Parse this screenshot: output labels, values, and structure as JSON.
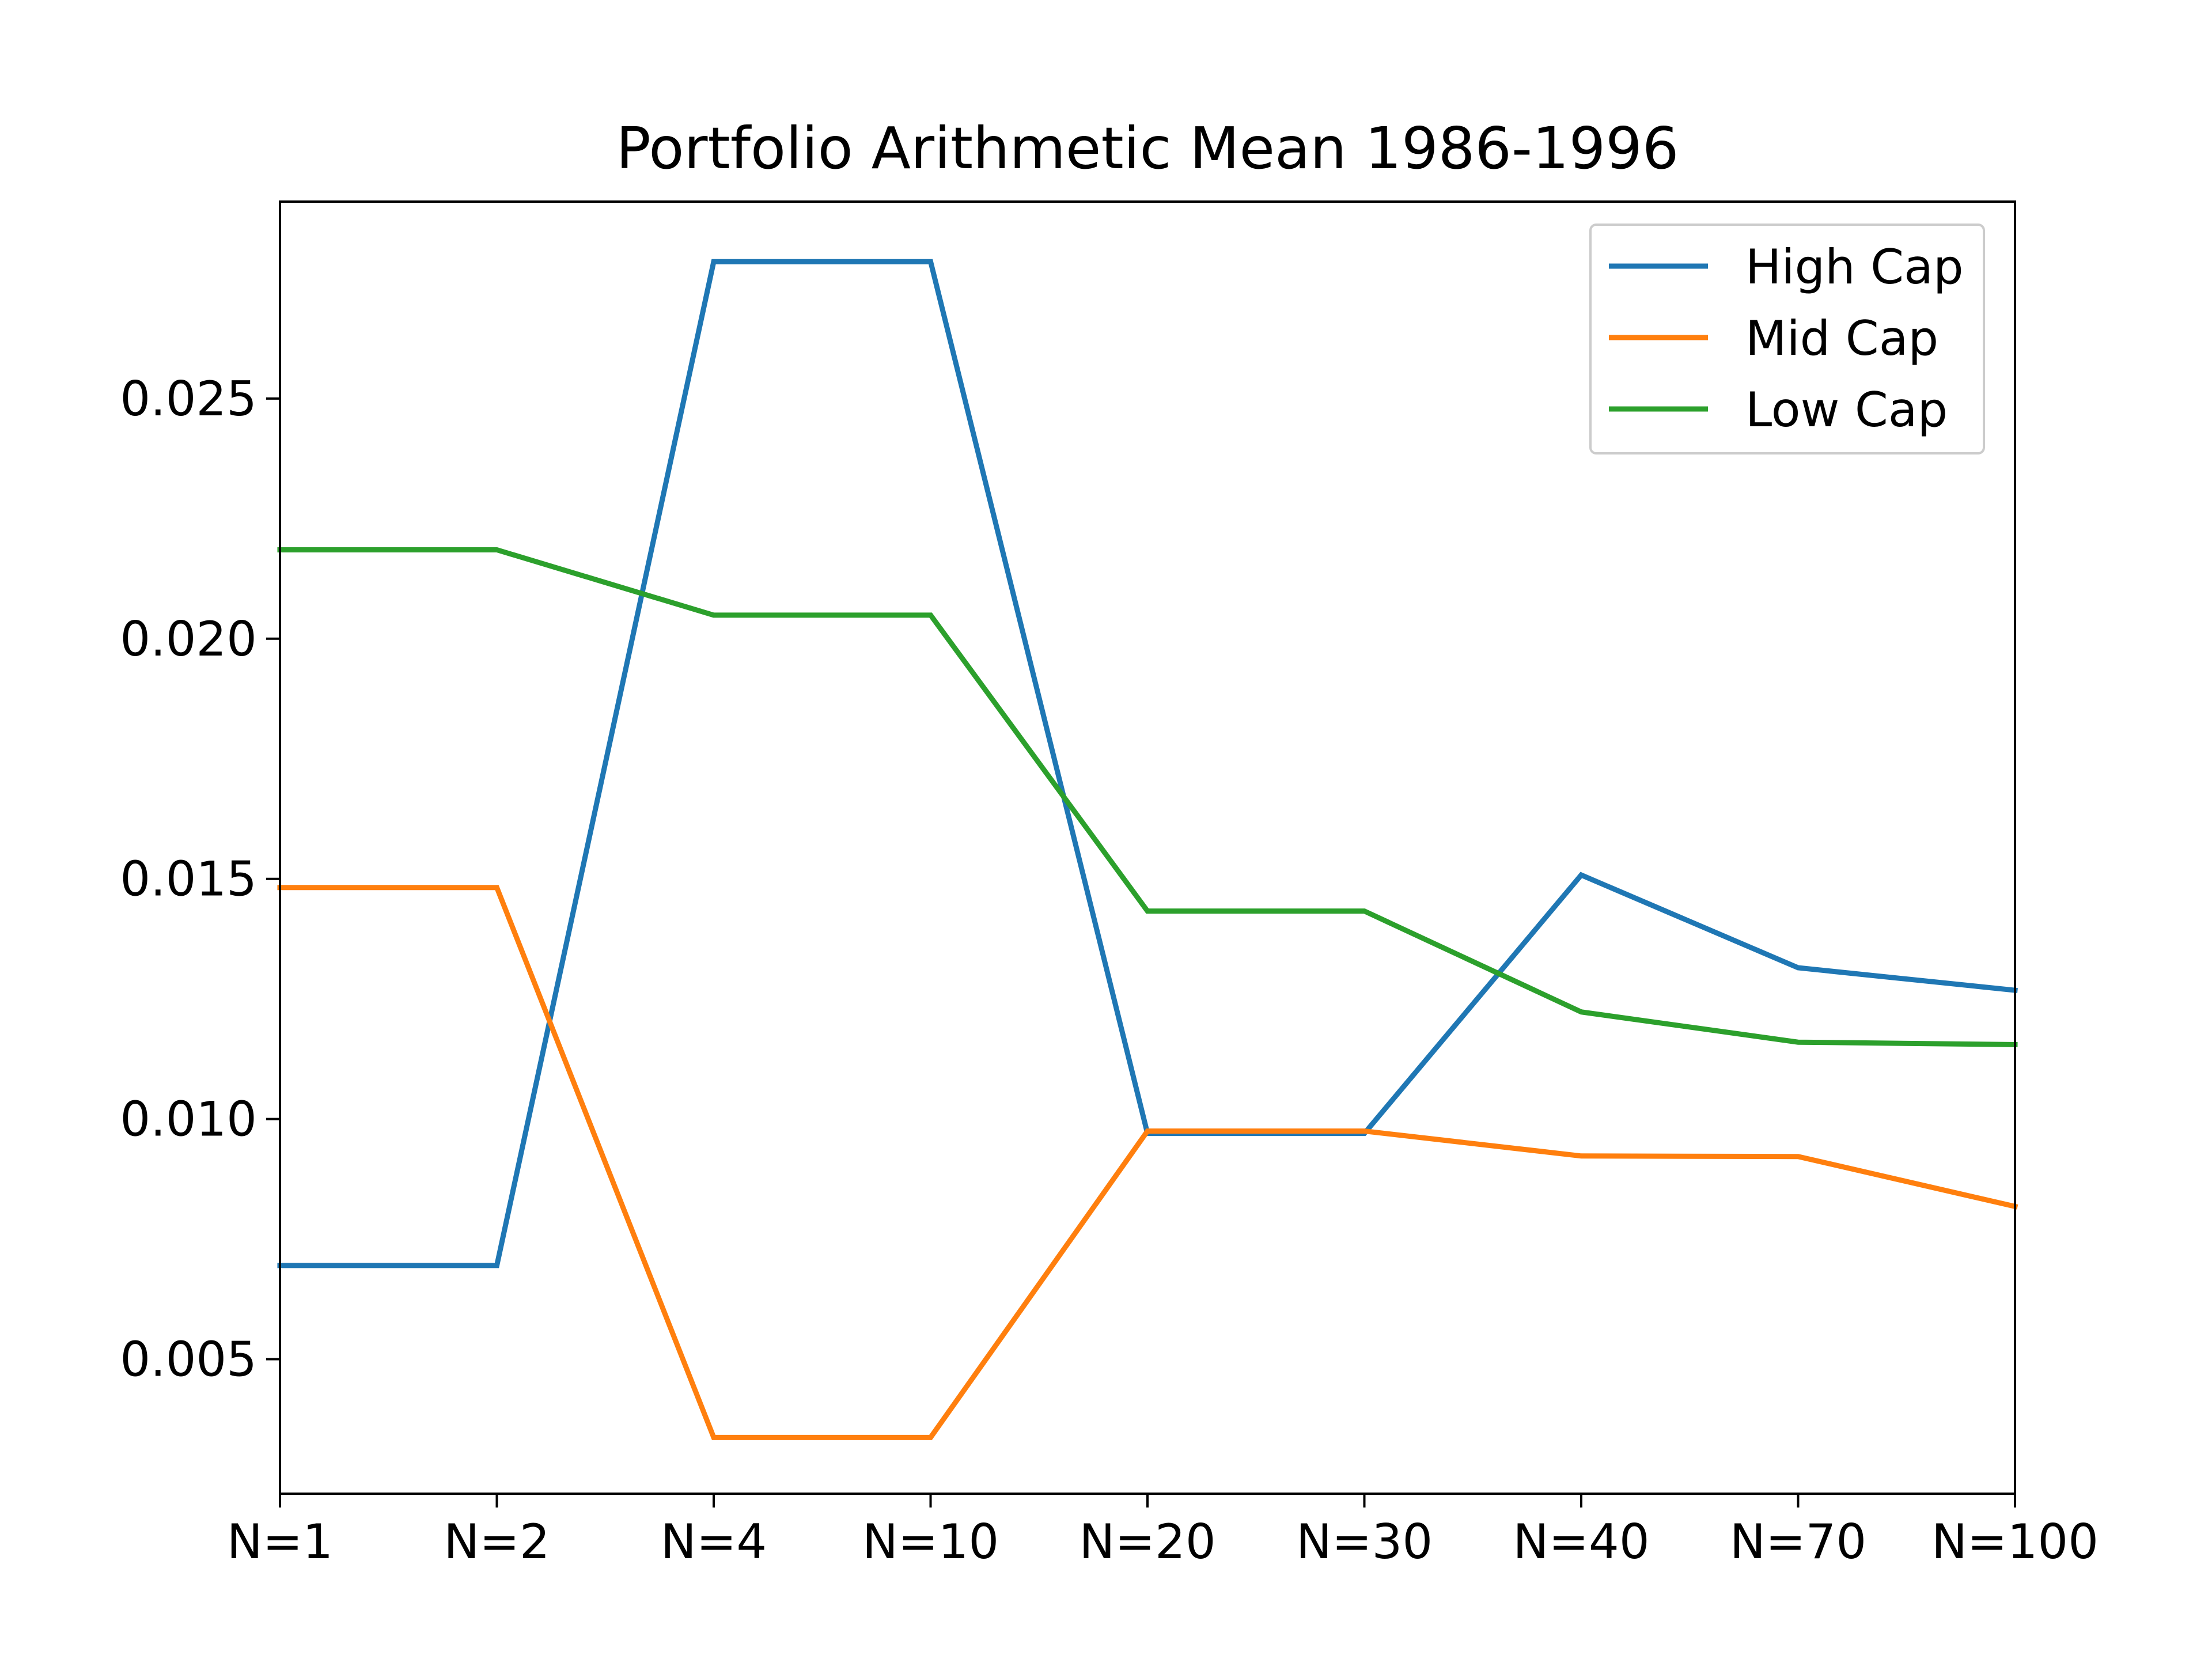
{
  "chart_data": {
    "type": "line",
    "title": "Portfolio Arithmetic Mean 1986-1996",
    "xlabel": "",
    "ylabel": "",
    "categories": [
      "N=1",
      "N=2",
      "N=4",
      "N=10",
      "N=20",
      "N=30",
      "N=40",
      "N=70",
      "N=100"
    ],
    "yticks": [
      {
        "value": 0.005,
        "label": "0.005"
      },
      {
        "value": 0.01,
        "label": "0.010"
      },
      {
        "value": 0.015,
        "label": "0.015"
      },
      {
        "value": 0.02,
        "label": "0.020"
      },
      {
        "value": 0.025,
        "label": "0.025"
      }
    ],
    "ylim": [
      0.0022,
      0.0291
    ],
    "grid": false,
    "legend_position": "top-right",
    "series": [
      {
        "name": "High Cap",
        "color": "#1f77b4",
        "values": [
          0.00695,
          0.00695,
          0.02785,
          0.02785,
          0.0097,
          0.0097,
          0.01508,
          0.01315,
          0.01268
        ]
      },
      {
        "name": "Mid Cap",
        "color": "#ff7f0e",
        "values": [
          0.01482,
          0.01482,
          0.00337,
          0.00337,
          0.00975,
          0.00975,
          0.00923,
          0.00922,
          0.00818
        ]
      },
      {
        "name": "Low Cap",
        "color": "#2ca02c",
        "values": [
          0.02185,
          0.02185,
          0.02049,
          0.02049,
          0.01433,
          0.01433,
          0.01223,
          0.0116,
          0.01155
        ]
      }
    ]
  }
}
